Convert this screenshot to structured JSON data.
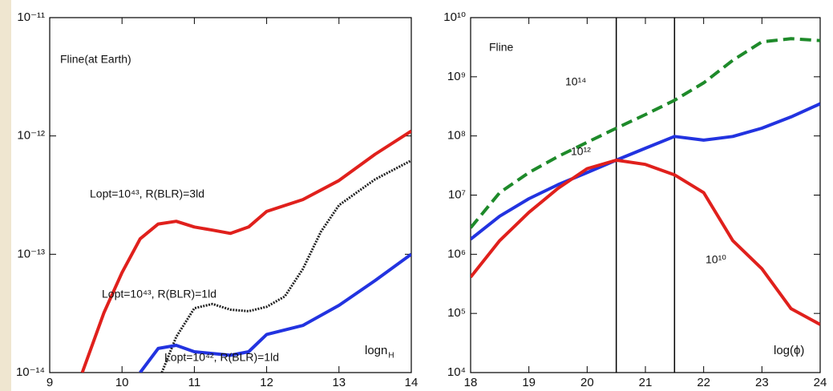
{
  "chart_data": [
    {
      "type": "line",
      "ylog": true,
      "xlim": [
        9,
        14
      ],
      "xticks": [
        9,
        10,
        11,
        12,
        13,
        14
      ],
      "ylim": [
        1e-14,
        1e-11
      ],
      "yticks": [
        {
          "value": 1e-14,
          "label": "10⁻¹⁴"
        },
        {
          "value": 1e-13,
          "label": "10⁻¹³"
        },
        {
          "value": 1e-12,
          "label": "10⁻¹²"
        },
        {
          "value": 1e-11,
          "label": "10⁻¹¹"
        }
      ],
      "xlabel": "logn",
      "xlabel_sub": "H",
      "annotations": [
        "Fline(at Earth)",
        "Lopt=10⁴³, R(BLR)=3ld",
        "Lopt=10⁴³, R(BLR)=1ld",
        "Lopt=10⁴², R(BLR)=1ld"
      ],
      "series": [
        {
          "color": "#e0201c",
          "style": "solid",
          "x": [
            9.45,
            9.75,
            10,
            10.25,
            10.5,
            10.75,
            11,
            11.25,
            11.5,
            11.75,
            12,
            12.5,
            13,
            13.5,
            14
          ],
          "values": [
            1e-14,
            3.2e-14,
            7e-14,
            1.35e-13,
            1.8e-13,
            1.9e-13,
            1.7e-13,
            1.6e-13,
            1.5e-13,
            1.7e-13,
            2.3e-13,
            2.9e-13,
            4.2e-13,
            7e-13,
            1.1e-12
          ]
        },
        {
          "color": "#222222",
          "style": "dotted",
          "x": [
            10.55,
            10.75,
            11,
            11.25,
            11.5,
            11.75,
            12,
            12.25,
            12.5,
            12.75,
            13,
            13.5,
            14
          ],
          "values": [
            1e-14,
            2e-14,
            3.5e-14,
            3.8e-14,
            3.4e-14,
            3.3e-14,
            3.6e-14,
            4.4e-14,
            7.5e-14,
            1.55e-13,
            2.6e-13,
            4.3e-13,
            6.2e-13
          ]
        },
        {
          "color": "#2233e0",
          "style": "solid",
          "x": [
            10.25,
            10.5,
            10.75,
            11,
            11.5,
            11.75,
            12,
            12.5,
            13,
            13.5,
            14
          ],
          "values": [
            1e-14,
            1.6e-14,
            1.7e-14,
            1.5e-14,
            1.4e-14,
            1.5e-14,
            2.1e-14,
            2.5e-14,
            3.7e-14,
            6e-14,
            1e-13
          ]
        }
      ]
    },
    {
      "type": "line",
      "ylog": true,
      "xlim": [
        18,
        24
      ],
      "xticks": [
        18,
        19,
        20,
        21,
        22,
        23,
        24
      ],
      "ylim": [
        10000,
        10000000000
      ],
      "yticks": [
        {
          "value": 10000,
          "label": "10⁴"
        },
        {
          "value": 100000,
          "label": "10⁵"
        },
        {
          "value": 1000000,
          "label": "10⁶"
        },
        {
          "value": 10000000,
          "label": "10⁷"
        },
        {
          "value": 100000000,
          "label": "10⁸"
        },
        {
          "value": 1000000000,
          "label": "10⁹"
        },
        {
          "value": 10000000000,
          "label": "10¹⁰"
        }
      ],
      "xlabel": "log(ϕ)",
      "vlines": [
        20.5,
        21.5
      ],
      "annotations": [
        "Fline",
        "10¹⁴",
        "10¹²",
        "10¹⁰"
      ],
      "series": [
        {
          "color": "#1e8a2a",
          "style": "dashed",
          "x": [
            18,
            18.5,
            19,
            19.5,
            20,
            20.5,
            21,
            21.5,
            22,
            22.5,
            23,
            23.5,
            24
          ],
          "values": [
            2800000,
            11000000,
            24000000,
            45000000,
            78000000,
            135000000,
            230000000,
            400000000,
            790000000,
            1900000000,
            3900000000,
            4400000000,
            4100000000
          ]
        },
        {
          "color": "#2233e0",
          "style": "solid",
          "x": [
            18,
            18.5,
            19,
            19.5,
            20,
            20.5,
            21,
            21.5,
            22,
            22.5,
            23,
            23.5,
            24
          ],
          "values": [
            1800000,
            4400000,
            8700000,
            15000000,
            24000000,
            39000000,
            62000000,
            98000000,
            85000000,
            98000000,
            135000000,
            210000000,
            350000000
          ]
        },
        {
          "color": "#e0201c",
          "style": "solid",
          "x": [
            18,
            18.5,
            19,
            19.5,
            20,
            20.5,
            21,
            21.5,
            22,
            22.5,
            23,
            23.5,
            24
          ],
          "values": [
            410000,
            1700000,
            5100000,
            13000000,
            28000000,
            39000000,
            33000000,
            22000000,
            11000000,
            1700000,
            570000,
            120000,
            65000
          ]
        }
      ]
    }
  ]
}
